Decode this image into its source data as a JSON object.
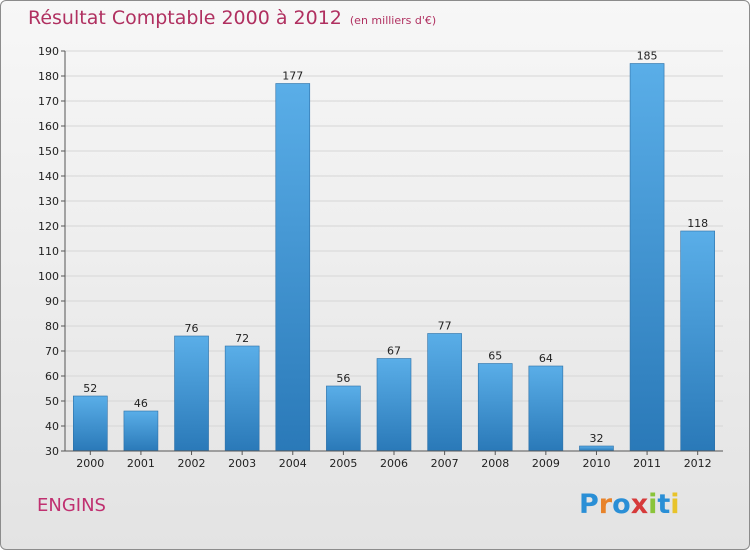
{
  "header": {
    "title": "Résultat Comptable 2000 à 2012",
    "subtitle": "(en milliers d'€)"
  },
  "footer": {
    "place": "ENGINS",
    "logo": "Proxiti"
  },
  "colors": {
    "bar_top": "#5aaee8",
    "bar_bottom": "#2a79b8",
    "title": "#b03060"
  },
  "chart_data": {
    "type": "bar",
    "title": "Résultat Comptable 2000 à 2012",
    "subtitle": "(en milliers d'€)",
    "xlabel": "",
    "ylabel": "",
    "categories": [
      "2000",
      "2001",
      "2002",
      "2003",
      "2004",
      "2005",
      "2006",
      "2007",
      "2008",
      "2009",
      "2010",
      "2011",
      "2012"
    ],
    "values": [
      52,
      46,
      76,
      72,
      177,
      56,
      67,
      77,
      65,
      64,
      32,
      185,
      118
    ],
    "ylim": [
      30,
      190
    ],
    "yticks": [
      30,
      40,
      50,
      60,
      70,
      80,
      90,
      100,
      110,
      120,
      130,
      140,
      150,
      160,
      170,
      180,
      190
    ],
    "grid": true,
    "legend": "none"
  }
}
